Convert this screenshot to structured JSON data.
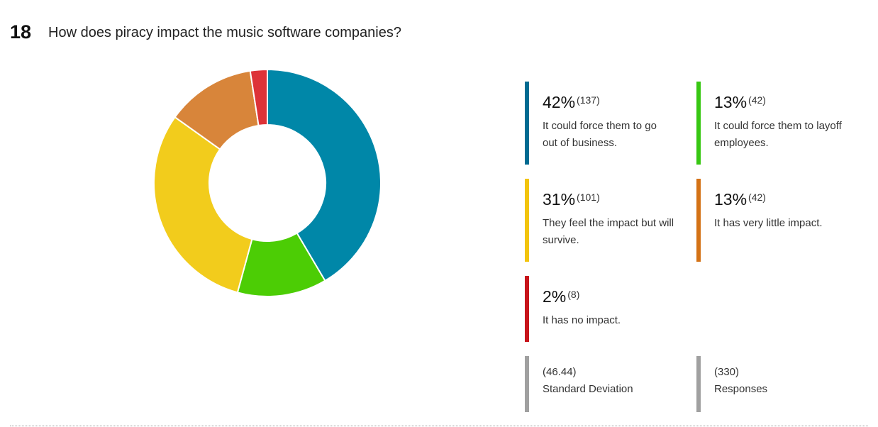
{
  "question": {
    "number": "18",
    "text": "How does piracy impact the music software companies?"
  },
  "chart_data": {
    "type": "pie",
    "categories": [
      "It could force them to go out of business.",
      "It could force them to layoff employees.",
      "They feel the impact but will survive.",
      "It has very little impact.",
      "It has no impact."
    ],
    "values": [
      137,
      42,
      101,
      42,
      8
    ],
    "percent_labels": [
      "42%",
      "13%",
      "31%",
      "13%",
      "2%"
    ],
    "count_labels": [
      "(137)",
      "(42)",
      "(101)",
      "(42)",
      "(8)"
    ],
    "colors": [
      "#0087a8",
      "#4ccd05",
      "#f2cc1c",
      "#d8853a",
      "#dd3338"
    ],
    "bar_colors": [
      "#006b91",
      "#37c712",
      "#f2c40e",
      "#d47216",
      "#c7141b"
    ]
  },
  "stats": {
    "std_dev_value": "(46.44)",
    "std_dev_label": "Standard Deviation",
    "responses_value": "(330)",
    "responses_label": "Responses",
    "bar_color": "#a0a0a0"
  }
}
